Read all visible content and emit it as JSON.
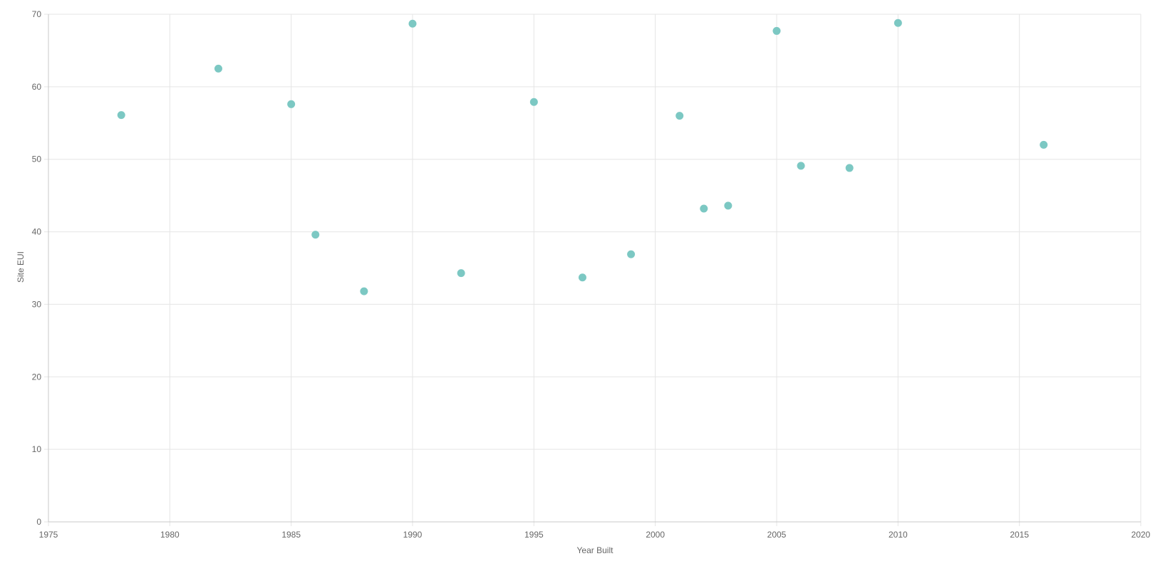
{
  "chart_data": {
    "type": "scatter",
    "title": "",
    "xlabel": "Year Built",
    "ylabel": "Site EUI",
    "xlim": [
      1975,
      2020
    ],
    "ylim": [
      0,
      70
    ],
    "x_ticks": [
      1975,
      1980,
      1985,
      1990,
      1995,
      2000,
      2005,
      2010,
      2015,
      2020
    ],
    "y_ticks": [
      0,
      10,
      20,
      30,
      40,
      50,
      60,
      70
    ],
    "grid": true,
    "legend": "none",
    "point_color": "#7cc8c3",
    "points": [
      {
        "x": 1978,
        "y": 56.1
      },
      {
        "x": 1982,
        "y": 62.5
      },
      {
        "x": 1985,
        "y": 57.6
      },
      {
        "x": 1986,
        "y": 39.6
      },
      {
        "x": 1988,
        "y": 31.8
      },
      {
        "x": 1990,
        "y": 68.7
      },
      {
        "x": 1992,
        "y": 34.3
      },
      {
        "x": 1995,
        "y": 57.9
      },
      {
        "x": 1997,
        "y": 33.7
      },
      {
        "x": 1999,
        "y": 36.9
      },
      {
        "x": 2001,
        "y": 56.0
      },
      {
        "x": 2002,
        "y": 43.2
      },
      {
        "x": 2003,
        "y": 43.6
      },
      {
        "x": 2005,
        "y": 67.7
      },
      {
        "x": 2006,
        "y": 49.1
      },
      {
        "x": 2008,
        "y": 48.8
      },
      {
        "x": 2010,
        "y": 68.8
      },
      {
        "x": 2016,
        "y": 52.0
      }
    ]
  }
}
